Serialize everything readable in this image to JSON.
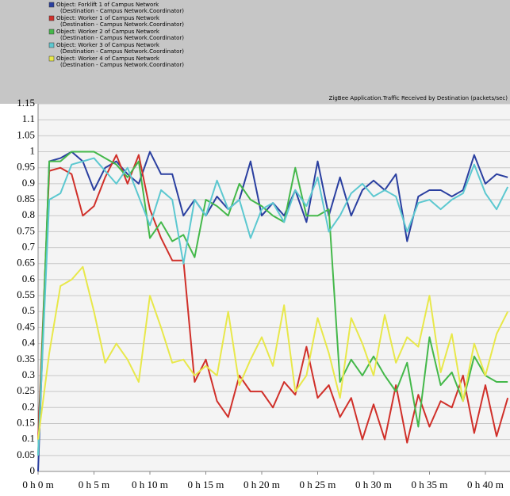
{
  "chart_data": {
    "type": "line",
    "title": "ZigBee Application.Traffic Received by Destination (packets/sec)",
    "x": [
      0,
      1,
      2,
      3,
      4,
      5,
      6,
      7,
      8,
      9,
      10,
      11,
      12,
      13,
      14,
      15,
      16,
      17,
      18,
      19,
      20,
      21,
      22,
      23,
      24,
      25,
      26,
      27,
      28,
      29,
      30,
      31,
      32,
      33,
      34,
      35,
      36,
      37,
      38,
      39,
      40,
      41,
      42
    ],
    "series": [
      {
        "name": "Object: Forklift 1 of Campus Network",
        "destination": "(Destination - Campus Network.Coordinator)",
        "color": "#2a3fa0",
        "values": [
          0,
          0.97,
          0.98,
          1.0,
          0.97,
          0.88,
          0.95,
          0.97,
          0.93,
          0.9,
          1.0,
          0.93,
          0.93,
          0.8,
          0.85,
          0.8,
          0.86,
          0.82,
          0.85,
          0.97,
          0.8,
          0.84,
          0.8,
          0.88,
          0.78,
          0.97,
          0.8,
          0.92,
          0.8,
          0.88,
          0.91,
          0.88,
          0.93,
          0.72,
          0.86,
          0.88,
          0.88,
          0.86,
          0.88,
          0.99,
          0.9,
          0.93,
          0.92
        ]
      },
      {
        "name": "Object: Worker 1 of Campus Network",
        "destination": "(Destination - Campus Network.Coordinator)",
        "color": "#d0302a",
        "values": [
          0.1,
          0.94,
          0.95,
          0.93,
          0.8,
          0.83,
          0.92,
          0.99,
          0.9,
          0.99,
          0.82,
          0.73,
          0.66,
          0.66,
          0.28,
          0.35,
          0.22,
          0.17,
          0.3,
          0.25,
          0.25,
          0.2,
          0.28,
          0.24,
          0.39,
          0.23,
          0.27,
          0.17,
          0.23,
          0.1,
          0.21,
          0.1,
          0.27,
          0.09,
          0.24,
          0.14,
          0.22,
          0.2,
          0.3,
          0.12,
          0.27,
          0.11,
          0.23
        ]
      },
      {
        "name": "Object: Worker 2 of Campus Network",
        "destination": "(Destination - Campus Network.Coordinator)",
        "color": "#44b84a",
        "values": [
          0.05,
          0.97,
          0.97,
          1.0,
          1.0,
          1.0,
          0.98,
          0.96,
          0.92,
          0.97,
          0.73,
          0.78,
          0.72,
          0.74,
          0.67,
          0.85,
          0.83,
          0.8,
          0.9,
          0.85,
          0.83,
          0.8,
          0.78,
          0.95,
          0.8,
          0.8,
          0.82,
          0.28,
          0.35,
          0.3,
          0.36,
          0.3,
          0.25,
          0.34,
          0.14,
          0.42,
          0.27,
          0.31,
          0.22,
          0.36,
          0.3,
          0.28,
          0.28
        ]
      },
      {
        "name": "Object: Worker 3 of Campus Network",
        "destination": "(Destination - Campus Network.Coordinator)",
        "color": "#5cc8d0",
        "values": [
          0.05,
          0.85,
          0.87,
          0.96,
          0.97,
          0.98,
          0.94,
          0.9,
          0.95,
          0.86,
          0.77,
          0.88,
          0.85,
          0.65,
          0.85,
          0.8,
          0.91,
          0.82,
          0.85,
          0.73,
          0.82,
          0.84,
          0.78,
          0.88,
          0.83,
          0.92,
          0.75,
          0.8,
          0.87,
          0.9,
          0.86,
          0.88,
          0.86,
          0.75,
          0.84,
          0.85,
          0.82,
          0.85,
          0.87,
          0.96,
          0.87,
          0.82,
          0.89
        ]
      },
      {
        "name": "Object: Worker 4 of Campus Network",
        "destination": "(Destination - Campus Network.Coordinator)",
        "color": "#e8e84a",
        "values": [
          0.1,
          0.37,
          0.58,
          0.6,
          0.64,
          0.5,
          0.34,
          0.4,
          0.35,
          0.28,
          0.55,
          0.45,
          0.34,
          0.35,
          0.3,
          0.33,
          0.3,
          0.5,
          0.27,
          0.35,
          0.42,
          0.33,
          0.52,
          0.25,
          0.3,
          0.48,
          0.37,
          0.23,
          0.48,
          0.4,
          0.3,
          0.49,
          0.34,
          0.42,
          0.39,
          0.55,
          0.31,
          0.43,
          0.22,
          0.4,
          0.3,
          0.43,
          0.5
        ]
      }
    ],
    "xlim": [
      0,
      42.2
    ],
    "xticks": [
      {
        "value": 0,
        "label": "0 h 0 m"
      },
      {
        "value": 5,
        "label": "0 h 5 m"
      },
      {
        "value": 10,
        "label": "0 h 10 m"
      },
      {
        "value": 15,
        "label": "0 h 15 m"
      },
      {
        "value": 20,
        "label": "0 h 20 m"
      },
      {
        "value": 25,
        "label": "0 h 25 m"
      },
      {
        "value": 30,
        "label": "0 h 30 m"
      },
      {
        "value": 35,
        "label": "0 h 35 m"
      },
      {
        "value": 40,
        "label": "0 h 40 m"
      }
    ],
    "ylim": [
      0,
      1.15
    ],
    "yticks": [
      0,
      0.05,
      0.1,
      0.15,
      0.2,
      0.25,
      0.3,
      0.35,
      0.4,
      0.45,
      0.5,
      0.55,
      0.6,
      0.65,
      0.7,
      0.75,
      0.8,
      0.85,
      0.9,
      0.95,
      1,
      1.05,
      1.1,
      1.15
    ],
    "grid": true
  }
}
